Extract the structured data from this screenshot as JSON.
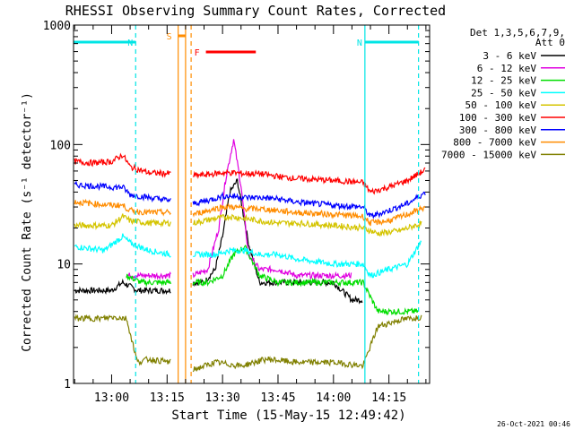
{
  "chart_data": {
    "type": "line",
    "title": "RHESSI Observing Summary Count Rates, Corrected",
    "xlabel": "Start Time (15-May-15 12:49:42)",
    "ylabel": "Corrected Count Rate (s⁻¹ detector⁻¹)",
    "yscale": "log",
    "ylim": [
      1,
      1000
    ],
    "xlim": [
      "12:49:42",
      "14:26:00"
    ],
    "x_ticks": [
      "13:00",
      "13:15",
      "13:30",
      "13:45",
      "14:00",
      "14:15"
    ],
    "y_ticks": [
      "1",
      "10",
      "100",
      "1000"
    ],
    "legend_header": [
      "Det 1,3,5,6,7,9,",
      "Att 0"
    ],
    "legend_position": "right",
    "footer_date": "26-Oct-2021 00:46",
    "grid": false,
    "markers": [
      {
        "label": "N",
        "color": "#00e5e5",
        "start": "12:49:42",
        "end": "13:06:30"
      },
      {
        "label": "N",
        "color": "#00e5e5",
        "start": "14:08:30",
        "end": "14:23:00"
      },
      {
        "label": "S",
        "color": "#ff8c00",
        "start": "13:18:00",
        "end": "13:20:00"
      },
      {
        "label": "F",
        "color": "#ff0000",
        "start": "13:25:30",
        "end": "13:39:00"
      }
    ],
    "vlines": [
      {
        "time": "13:06:30",
        "color": "#00e5e5",
        "style": "dashed"
      },
      {
        "time": "14:08:30",
        "color": "#00e5e5",
        "style": "solid"
      },
      {
        "time": "14:23:00",
        "color": "#00e5e5",
        "style": "dashed"
      },
      {
        "time": "13:18:00",
        "color": "#ff8c00",
        "style": "solid"
      },
      {
        "time": "13:20:00",
        "color": "#ff8c00",
        "style": "solid"
      },
      {
        "time": "13:21:30",
        "color": "#ff8c00",
        "style": "dashed"
      }
    ],
    "gaps": [
      [
        "13:16:00",
        "13:22:00"
      ]
    ],
    "series": [
      {
        "name": "3 - 6 keV",
        "color": "#000000",
        "x": [
          "12:50",
          "13:00",
          "13:03",
          "13:07",
          "13:10",
          "13:16",
          "13:22",
          "13:25",
          "13:28",
          "13:30",
          "13:32",
          "13:34",
          "13:37",
          "13:40",
          "13:45",
          "13:50",
          "14:00",
          "14:05",
          "14:08"
        ],
        "values": [
          6,
          6,
          7,
          6,
          6,
          6,
          7,
          7,
          9,
          17,
          40,
          50,
          15,
          7,
          7,
          7,
          7,
          5,
          5
        ]
      },
      {
        "name": "6 - 12 keV",
        "color": "#e000e0",
        "x": [
          "13:04",
          "13:07",
          "13:12",
          "13:16",
          "13:22",
          "13:26",
          "13:29",
          "13:31",
          "13:33",
          "13:35",
          "13:37",
          "13:40",
          "13:45",
          "13:50",
          "14:00",
          "14:05"
        ],
        "values": [
          8,
          8,
          8,
          8,
          8,
          9,
          20,
          55,
          110,
          45,
          12,
          9,
          9,
          8,
          8,
          8
        ]
      },
      {
        "name": "12 - 25 keV",
        "color": "#00dd00",
        "x": [
          "13:04",
          "13:08",
          "13:12",
          "13:16",
          "13:22",
          "13:26",
          "13:30",
          "13:33",
          "13:36",
          "13:40",
          "13:45",
          "13:50",
          "14:00",
          "14:08",
          "14:12",
          "14:18",
          "14:23"
        ],
        "values": [
          8,
          7,
          7,
          7,
          7,
          7,
          8,
          12,
          14,
          8,
          7,
          7,
          7,
          7,
          4,
          4,
          4
        ]
      },
      {
        "name": "25 - 50 keV",
        "color": "#00ffff",
        "x": [
          "12:50",
          "12:58",
          "13:03",
          "13:05",
          "13:10",
          "13:16",
          "13:22",
          "13:28",
          "13:32",
          "13:36",
          "13:40",
          "13:45",
          "13:50",
          "14:00",
          "14:08",
          "14:10",
          "14:15",
          "14:20",
          "14:24"
        ],
        "values": [
          14,
          13,
          17,
          15,
          13,
          12,
          12,
          12,
          13,
          13,
          12,
          12,
          11,
          10,
          10,
          8,
          9,
          10,
          16
        ]
      },
      {
        "name": "50 - 100 keV",
        "color": "#d4c400",
        "x": [
          "12:50",
          "13:00",
          "13:03",
          "13:05",
          "13:10",
          "13:16",
          "13:22",
          "13:28",
          "13:32",
          "13:36",
          "13:40",
          "13:45",
          "13:50",
          "14:00",
          "14:08",
          "14:12",
          "14:18",
          "14:24"
        ],
        "values": [
          21,
          21,
          25,
          23,
          22,
          22,
          22,
          24,
          25,
          24,
          23,
          22,
          22,
          21,
          20,
          18,
          19,
          22
        ]
      },
      {
        "name": "100 - 300 keV",
        "color": "#ff0000",
        "x": [
          "12:50",
          "12:55",
          "13:00",
          "13:03",
          "13:05",
          "13:10",
          "13:16",
          "13:22",
          "13:26",
          "13:30",
          "13:33",
          "13:36",
          "13:40",
          "13:45",
          "13:50",
          "14:00",
          "14:08",
          "14:10",
          "14:15",
          "14:20",
          "14:25"
        ],
        "values": [
          72,
          70,
          72,
          82,
          65,
          58,
          57,
          55,
          56,
          58,
          58,
          57,
          57,
          54,
          52,
          50,
          48,
          40,
          44,
          50,
          62
        ]
      },
      {
        "name": "300 - 800 keV",
        "color": "#0000ff",
        "x": [
          "12:50",
          "12:55",
          "13:00",
          "13:03",
          "13:05",
          "13:10",
          "13:16",
          "13:22",
          "13:26",
          "13:30",
          "13:33",
          "13:36",
          "13:40",
          "13:45",
          "13:50",
          "14:00",
          "14:08",
          "14:10",
          "14:15",
          "14:20",
          "14:25"
        ],
        "values": [
          46,
          45,
          44,
          44,
          38,
          36,
          34,
          32,
          34,
          37,
          37,
          36,
          36,
          35,
          33,
          31,
          30,
          25,
          28,
          32,
          40
        ]
      },
      {
        "name": "800 - 7000 keV",
        "color": "#ff8c00",
        "x": [
          "12:50",
          "12:55",
          "13:00",
          "13:03",
          "13:05",
          "13:10",
          "13:16",
          "13:22",
          "13:26",
          "13:30",
          "13:33",
          "13:36",
          "13:40",
          "13:45",
          "13:50",
          "14:00",
          "14:08",
          "14:10",
          "14:15",
          "14:20",
          "14:25"
        ],
        "values": [
          33,
          32,
          31,
          31,
          28,
          27,
          27,
          26,
          28,
          30,
          30,
          29,
          29,
          28,
          27,
          26,
          25,
          22,
          23,
          26,
          30
        ]
      },
      {
        "name": "7000 - 15000 keV",
        "color": "#808000",
        "x": [
          "12:50",
          "12:58",
          "13:00",
          "13:04",
          "13:07",
          "13:10",
          "13:16",
          "13:22",
          "13:28",
          "13:35",
          "13:42",
          "13:50",
          "14:00",
          "14:08",
          "14:12",
          "14:18",
          "14:24"
        ],
        "values": [
          3.5,
          3.5,
          3.6,
          3.5,
          1.5,
          1.6,
          1.5,
          1.3,
          1.5,
          1.4,
          1.6,
          1.5,
          1.5,
          1.4,
          3,
          3.4,
          3.6
        ]
      }
    ]
  }
}
